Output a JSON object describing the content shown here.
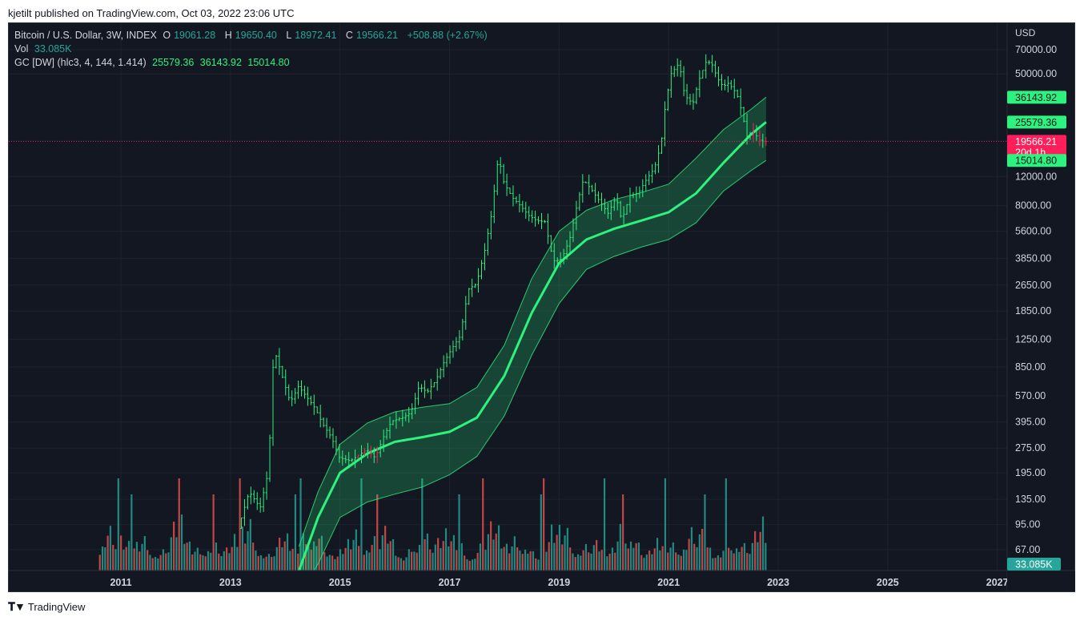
{
  "published": "kjetilt published on TradingView.com, Oct 03, 2022 23:06 UTC",
  "legend": {
    "symbol": "Bitcoin / U.S. Dollar, 3W, INDEX",
    "o_label": "O",
    "o": "19061.28",
    "h_label": "H",
    "h": "19650.40",
    "l_label": "L",
    "l": "18972.41",
    "c_label": "C",
    "c": "19566.21",
    "change": "+508.88 (+2.67%)",
    "vol_label": "Vol",
    "vol": "33.085K",
    "gc_label": "GC [DW] (hlc3, 4, 144, 1.414)",
    "gc_mid": "25579.36",
    "gc_up": "36143.92",
    "gc_low": "15014.80"
  },
  "footer": {
    "brand": "TradingView"
  },
  "colors": {
    "bg": "#131722",
    "grid": "#1e222d",
    "up": "#26a69a",
    "down": "#ef5350",
    "band": "#2ef27e",
    "candle_up": "#2ef27e",
    "candle_down": "#ff1e5a"
  },
  "chart_data": {
    "type": "candlestick",
    "scale": "log",
    "currency_label": "USD",
    "x_ticks": [
      "2011",
      "2013",
      "2015",
      "2017",
      "2019",
      "2021",
      "2023",
      "2025",
      "2027"
    ],
    "y_ticks": [
      "70000.00",
      "50000.00",
      "12000.00",
      "8000.00",
      "5600.00",
      "3850.00",
      "2650.00",
      "1850.00",
      "1250.00",
      "850.00",
      "570.00",
      "395.00",
      "275.00",
      "195.00",
      "135.00",
      "95.00",
      "67.00"
    ],
    "y_tick_values": [
      70000,
      50000,
      12000,
      8000,
      5600,
      3850,
      2650,
      1850,
      1250,
      850,
      570,
      395,
      275,
      195,
      135,
      95,
      67
    ],
    "ylim": [
      50,
      85000
    ],
    "xlim": [
      2009.8,
      2027.3
    ],
    "price_labels": [
      {
        "value": 36143.92,
        "text": "36143.92",
        "type": "upper"
      },
      {
        "value": 25579.36,
        "text": "25579.36",
        "type": "mid"
      },
      {
        "value": 19566.21,
        "text": "19566.21",
        "sub": "20d 1h",
        "type": "last"
      },
      {
        "value": 15014.8,
        "text": "15014.80",
        "type": "lower"
      }
    ],
    "volume_label": "33.085K",
    "gc_band": {
      "x": [
        2014.25,
        2014.6,
        2015.0,
        2015.5,
        2016.0,
        2016.5,
        2017.0,
        2017.5,
        2018.0,
        2018.5,
        2019.0,
        2019.5,
        2020.0,
        2020.5,
        2021.0,
        2021.5,
        2022.0,
        2022.5,
        2022.78
      ],
      "mid": [
        50,
        105,
        195,
        255,
        300,
        320,
        345,
        420,
        750,
        1800,
        3600,
        5000,
        5800,
        6500,
        7300,
        9500,
        14500,
        21500,
        25579
      ],
      "upper": [
        70,
        150,
        290,
        390,
        455,
        485,
        510,
        640,
        1150,
        2900,
        5600,
        7500,
        8700,
        9600,
        10800,
        15500,
        23000,
        30500,
        36144
      ],
      "lower": [
        35,
        55,
        105,
        130,
        145,
        160,
        190,
        245,
        430,
        1000,
        2050,
        3300,
        3950,
        4500,
        5000,
        6300,
        9800,
        13000,
        15015
      ]
    },
    "price_path": [
      [
        2013.2,
        90
      ],
      [
        2013.4,
        150
      ],
      [
        2013.6,
        120
      ],
      [
        2013.75,
        200
      ],
      [
        2013.85,
        1100
      ],
      [
        2014.0,
        750
      ],
      [
        2014.15,
        520
      ],
      [
        2014.3,
        650
      ],
      [
        2014.45,
        560
      ],
      [
        2014.6,
        480
      ],
      [
        2014.75,
        380
      ],
      [
        2014.9,
        320
      ],
      [
        2015.05,
        240
      ],
      [
        2015.25,
        230
      ],
      [
        2015.4,
        250
      ],
      [
        2015.55,
        270
      ],
      [
        2015.7,
        240
      ],
      [
        2015.85,
        320
      ],
      [
        2016.0,
        400
      ],
      [
        2016.2,
        420
      ],
      [
        2016.35,
        450
      ],
      [
        2016.5,
        650
      ],
      [
        2016.65,
        600
      ],
      [
        2016.8,
        700
      ],
      [
        2016.95,
        900
      ],
      [
        2017.1,
        1100
      ],
      [
        2017.25,
        1300
      ],
      [
        2017.4,
        2500
      ],
      [
        2017.55,
        2700
      ],
      [
        2017.7,
        4300
      ],
      [
        2017.82,
        7000
      ],
      [
        2017.95,
        16000
      ],
      [
        2018.05,
        11000
      ],
      [
        2018.2,
        9000
      ],
      [
        2018.35,
        8000
      ],
      [
        2018.5,
        7000
      ],
      [
        2018.65,
        6500
      ],
      [
        2018.8,
        6400
      ],
      [
        2018.95,
        3700
      ],
      [
        2019.1,
        3800
      ],
      [
        2019.25,
        5000
      ],
      [
        2019.4,
        8500
      ],
      [
        2019.5,
        11500
      ],
      [
        2019.65,
        10000
      ],
      [
        2019.8,
        8500
      ],
      [
        2019.95,
        7200
      ],
      [
        2020.1,
        9000
      ],
      [
        2020.2,
        6500
      ],
      [
        2020.35,
        9200
      ],
      [
        2020.5,
        9500
      ],
      [
        2020.65,
        11500
      ],
      [
        2020.8,
        13500
      ],
      [
        2020.92,
        19000
      ],
      [
        2021.0,
        33000
      ],
      [
        2021.1,
        50000
      ],
      [
        2021.25,
        58000
      ],
      [
        2021.35,
        37000
      ],
      [
        2021.5,
        33000
      ],
      [
        2021.6,
        45000
      ],
      [
        2021.75,
        60000
      ],
      [
        2021.85,
        57000
      ],
      [
        2021.95,
        47000
      ],
      [
        2022.05,
        42000
      ],
      [
        2022.15,
        44000
      ],
      [
        2022.3,
        38000
      ],
      [
        2022.4,
        29000
      ],
      [
        2022.5,
        20000
      ],
      [
        2022.6,
        23000
      ],
      [
        2022.7,
        20000
      ],
      [
        2022.78,
        19566
      ]
    ],
    "volume_pattern": [
      0.22,
      0.35,
      0.28,
      0.45,
      0.6,
      0.3,
      0.25,
      0.5,
      0.7,
      0.4,
      0.55,
      0.8,
      0.35,
      0.45,
      0.6,
      0.3,
      0.5,
      0.75,
      0.4,
      0.3
    ]
  }
}
